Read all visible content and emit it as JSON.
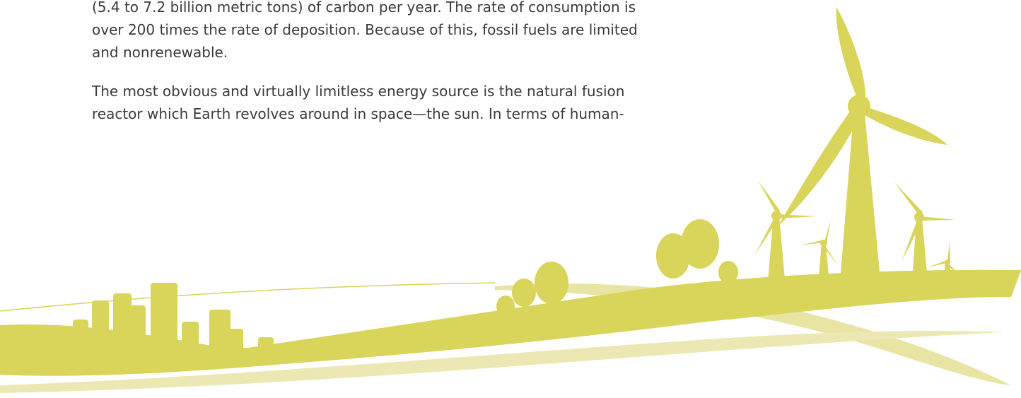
{
  "paragraphs": [
    {
      "lines": [
        "(5.4 to 7.2 billion metric tons) of carbon per year. The rate of consumption is",
        "over 200 times the rate of deposition. Because of this, fossil fuels are limited",
        "and nonrenewable."
      ]
    },
    {
      "lines": [
        "The most obvious and virtually limitless energy source is the natural fusion",
        "reactor which Earth revolves around in space—the sun. In terms of human-"
      ]
    }
  ]
}
